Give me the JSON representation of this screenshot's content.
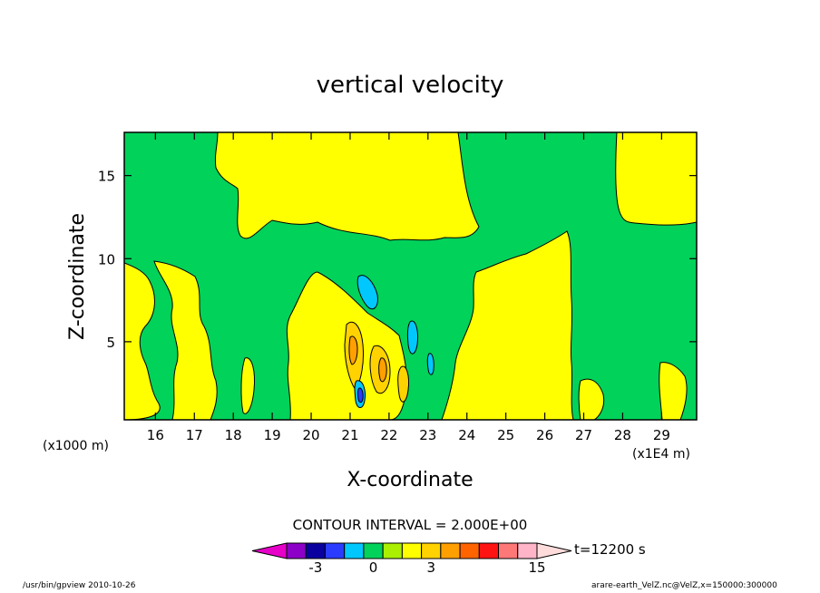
{
  "chart_data": {
    "type": "heatmap",
    "title": "vertical velocity",
    "xlabel": "X-coordinate",
    "ylabel": "Z-coordinate",
    "x_unit_left": "(x1000 m)",
    "x_unit_right": "(x1E4 m)",
    "xlim": [
      15.2,
      29.9
    ],
    "ylim": [
      0.3,
      17.6
    ],
    "x_ticks": [
      16,
      17,
      18,
      19,
      20,
      21,
      22,
      23,
      24,
      25,
      26,
      27,
      28,
      29
    ],
    "y_ticks": [
      5,
      10,
      15
    ],
    "contour_interval_label": "CONTOUR INTERVAL = 2.000E+00",
    "time_label": "t=12200 s",
    "colorbar": {
      "colors": [
        "#e600c8",
        "#8c00c8",
        "#0a00a0",
        "#2a3cff",
        "#00c8ff",
        "#00d25a",
        "#aaf000",
        "#ffff00",
        "#ffd200",
        "#ffa000",
        "#ff6400",
        "#ff1414",
        "#ff7878",
        "#ffb4c8",
        "#ffdcdc"
      ],
      "labels": [
        {
          "value": "-3",
          "pos": 2.5
        },
        {
          "value": "0",
          "pos": 5.5
        },
        {
          "value": "3",
          "pos": 8.5
        },
        {
          "value": "15",
          "pos": 14
        }
      ]
    },
    "regions": {
      "background": "#00d25a",
      "positive_weak": "#ffff00",
      "positive_mid": "#ffd200",
      "positive_strong": "#ffa000",
      "negative_weak": "#00c8ff",
      "negative_mid": "#2a3cff"
    }
  },
  "footer": {
    "left": "/usr/bin/gpview   2010-10-26",
    "right": "arare-earth_VelZ.nc@VelZ,x=150000:300000"
  }
}
